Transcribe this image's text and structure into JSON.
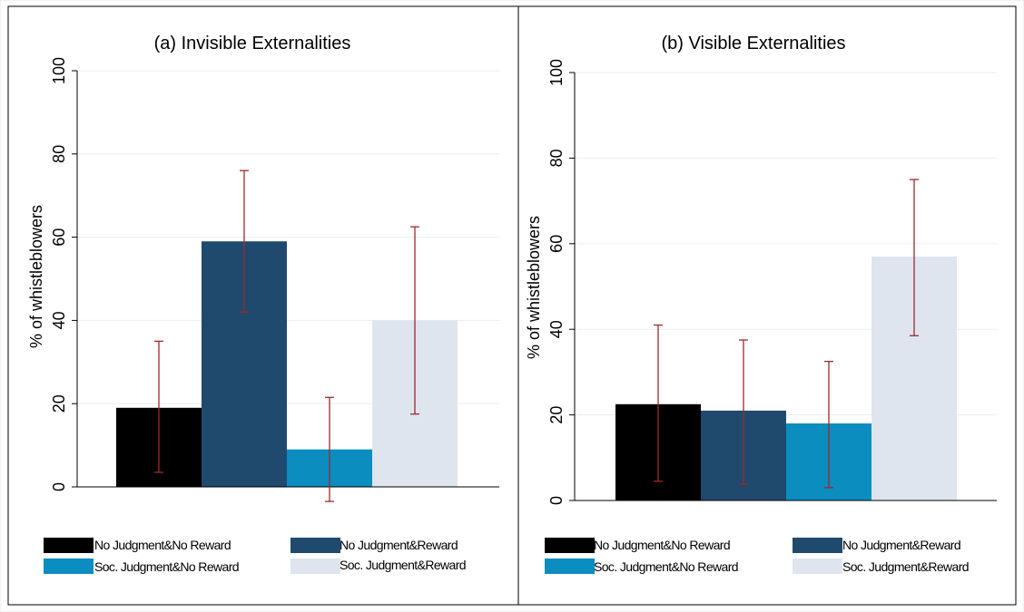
{
  "chart_data": [
    {
      "type": "bar",
      "title": "(a) Invisible Externalities",
      "ylabel": "% of whistleblowers",
      "ylim": [
        0,
        100
      ],
      "yticks": [
        "0",
        "20",
        "40",
        "60",
        "80",
        "100"
      ],
      "grid": true,
      "legend_position": "bottom",
      "series": [
        {
          "name": "No Judgment&No Reward",
          "value": 19,
          "ci": [
            3.5,
            35
          ],
          "color": "#000000"
        },
        {
          "name": "No Judgment&Reward",
          "value": 59,
          "ci": [
            42,
            76
          ],
          "color": "#1f4a6e"
        },
        {
          "name": "Soc. Judgment&No Reward",
          "value": 9,
          "ci": [
            -3.5,
            21.5
          ],
          "color": "#0b8dc0"
        },
        {
          "name": "Soc. Judgment&Reward",
          "value": 40,
          "ci": [
            17.5,
            62.5
          ],
          "color": "#dfe5ef"
        }
      ],
      "errorbar_color": "#9e2a2b"
    },
    {
      "type": "bar",
      "title": "(b) Visible Externalities",
      "ylabel": "% of whistleblowers",
      "ylim": [
        0,
        100
      ],
      "yticks": [
        "0",
        "20",
        "40",
        "60",
        "80",
        "100"
      ],
      "grid": true,
      "legend_position": "bottom",
      "series": [
        {
          "name": "No Judgment&No Reward",
          "value": 22.5,
          "ci": [
            4.5,
            41
          ],
          "color": "#000000"
        },
        {
          "name": "No Judgment&Reward",
          "value": 21,
          "ci": [
            3.8,
            37.5
          ],
          "color": "#1f4a6e"
        },
        {
          "name": "Soc. Judgment&No Reward",
          "value": 18,
          "ci": [
            3,
            32.5
          ],
          "color": "#0b8dc0"
        },
        {
          "name": "Soc. Judgment&Reward",
          "value": 57,
          "ci": [
            38.5,
            75
          ],
          "color": "#dfe5ef"
        }
      ],
      "errorbar_color": "#9e2a2b"
    }
  ]
}
